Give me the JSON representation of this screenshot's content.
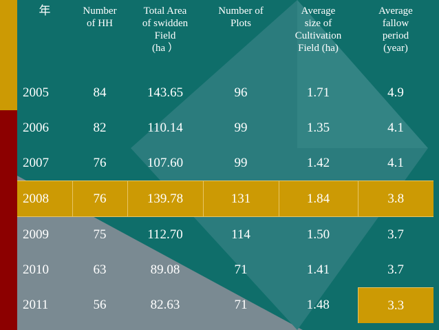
{
  "table": {
    "headers": [
      "年",
      "Number\nof HH",
      "Total Area\nof swidden\nField\n(ha ）",
      "Number of\nPlots",
      "Average\nsize of\nCultivation\nField (ha)",
      "Average\nfallow\nperiod\n(year)"
    ],
    "rows": [
      [
        "2005",
        "84",
        "143.65",
        "96",
        "1.71",
        "4.9"
      ],
      [
        "2006",
        "82",
        "110.14",
        "99",
        "1.35",
        "4.1"
      ],
      [
        "2007",
        "76",
        "107.60",
        "99",
        "1.42",
        "4.1"
      ],
      [
        "2008",
        "76",
        "139.78",
        "131",
        "1.84",
        "3.8"
      ],
      [
        "2009",
        "75",
        "112.70",
        "114",
        "1.50",
        "3.7"
      ],
      [
        "2010",
        "63",
        "89.08",
        "71",
        "1.41",
        "3.7"
      ],
      [
        "2011",
        "56",
        "82.63",
        "71",
        "1.48",
        "3.3"
      ]
    ],
    "highlighted_row": "2008",
    "highlighted_cell": {
      "row": "2011",
      "column": "Average fallow period (year)"
    }
  },
  "colors": {
    "background": "#0f6e6a",
    "diamond": "#2b7c7d",
    "gray_triangle": "#7a8a92",
    "highlight": "#cc9a04",
    "bar_gold": "#cc9a04",
    "bar_red": "#8c0000",
    "text": "#ffffff"
  }
}
